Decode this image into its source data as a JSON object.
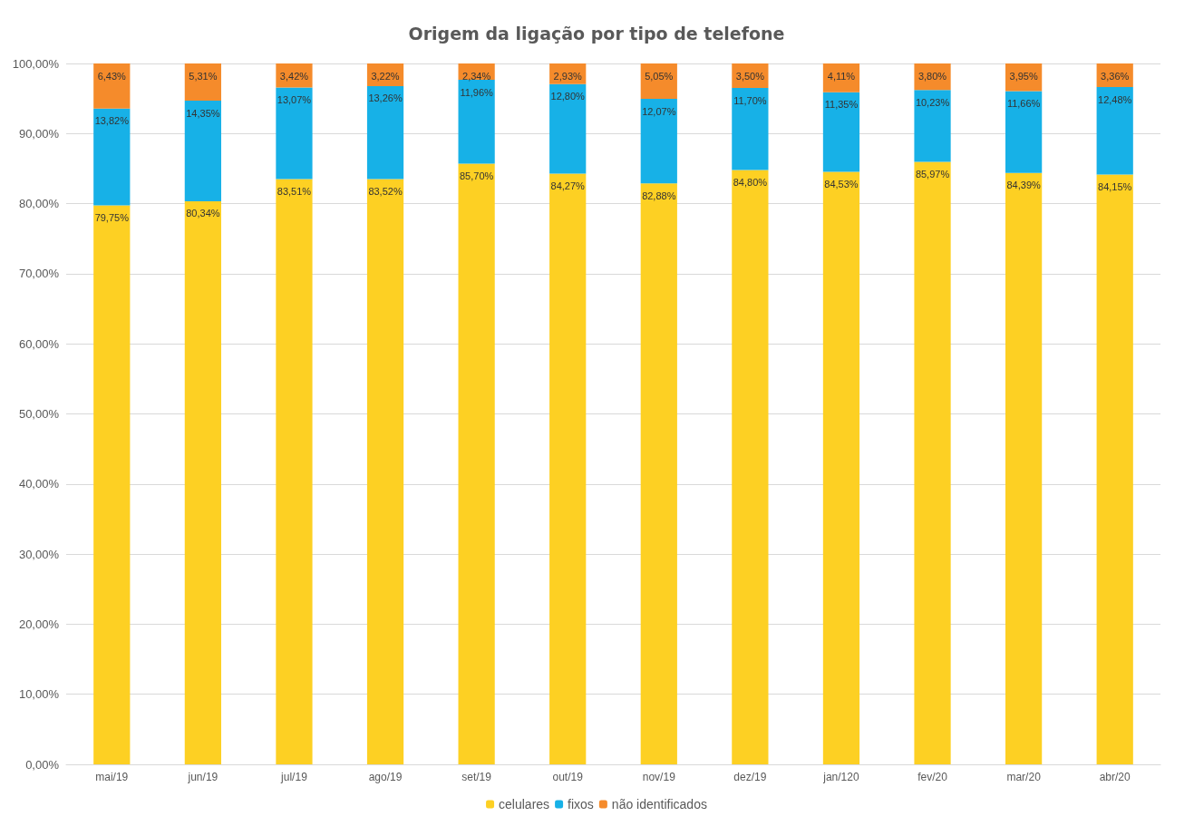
{
  "chart_data": {
    "type": "bar",
    "title": "Origem da ligação por tipo de telefone",
    "stacked": true,
    "grid": "y",
    "legend": "bottom",
    "categories": [
      "mai/19",
      "jun/19",
      "jul/19",
      "ago/19",
      "set/19",
      "out/19",
      "nov/19",
      "dez/19",
      "jan/120",
      "fev/20",
      "mar/20",
      "abr/20"
    ],
    "ylim": [
      0,
      100
    ],
    "yticks": [
      {
        "value": 0,
        "label": "0,00%"
      },
      {
        "value": 10,
        "label": "10,00%"
      },
      {
        "value": 20,
        "label": "20,00%"
      },
      {
        "value": 30,
        "label": "30,00%"
      },
      {
        "value": 40,
        "label": "40,00%"
      },
      {
        "value": 50,
        "label": "50,00%"
      },
      {
        "value": 60,
        "label": "60,00%"
      },
      {
        "value": 70,
        "label": "70,00%"
      },
      {
        "value": 80,
        "label": "80,00%"
      },
      {
        "value": 90,
        "label": "90,00%"
      },
      {
        "value": 100,
        "label": "100,00%"
      }
    ],
    "series": [
      {
        "name": "celulares",
        "color": "#fdd023",
        "values": [
          79.75,
          80.34,
          83.51,
          83.52,
          85.7,
          84.27,
          82.88,
          84.8,
          84.53,
          85.97,
          84.39,
          84.15
        ],
        "value_labels": [
          "79,75%",
          "80,34%",
          "83,51%",
          "83,52%",
          "85,70%",
          "84,27%",
          "82,88%",
          "84,80%",
          "84,53%",
          "85,97%",
          "84,39%",
          "84,15%"
        ]
      },
      {
        "name": "fixos",
        "color": "#17b1e7",
        "values": [
          13.82,
          14.35,
          13.07,
          13.26,
          11.96,
          12.8,
          12.07,
          11.7,
          11.35,
          10.23,
          11.66,
          12.48
        ],
        "value_labels": [
          "13,82%",
          "14,35%",
          "13,07%",
          "13,26%",
          "11,96%",
          "12,80%",
          "12,07%",
          "11,70%",
          "11,35%",
          "10,23%",
          "11,66%",
          "12,48%"
        ]
      },
      {
        "name": "não identificados",
        "color": "#f58b2b",
        "values": [
          6.43,
          5.31,
          3.42,
          3.22,
          2.34,
          2.93,
          5.05,
          3.5,
          4.11,
          3.8,
          3.95,
          3.36
        ],
        "value_labels": [
          "6,43%",
          "5,31%",
          "3,42%",
          "3,22%",
          "2,34%",
          "2,93%",
          "5,05%",
          "3,50%",
          "4,11%",
          "3,80%",
          "3,95%",
          "3,36%"
        ]
      }
    ]
  }
}
